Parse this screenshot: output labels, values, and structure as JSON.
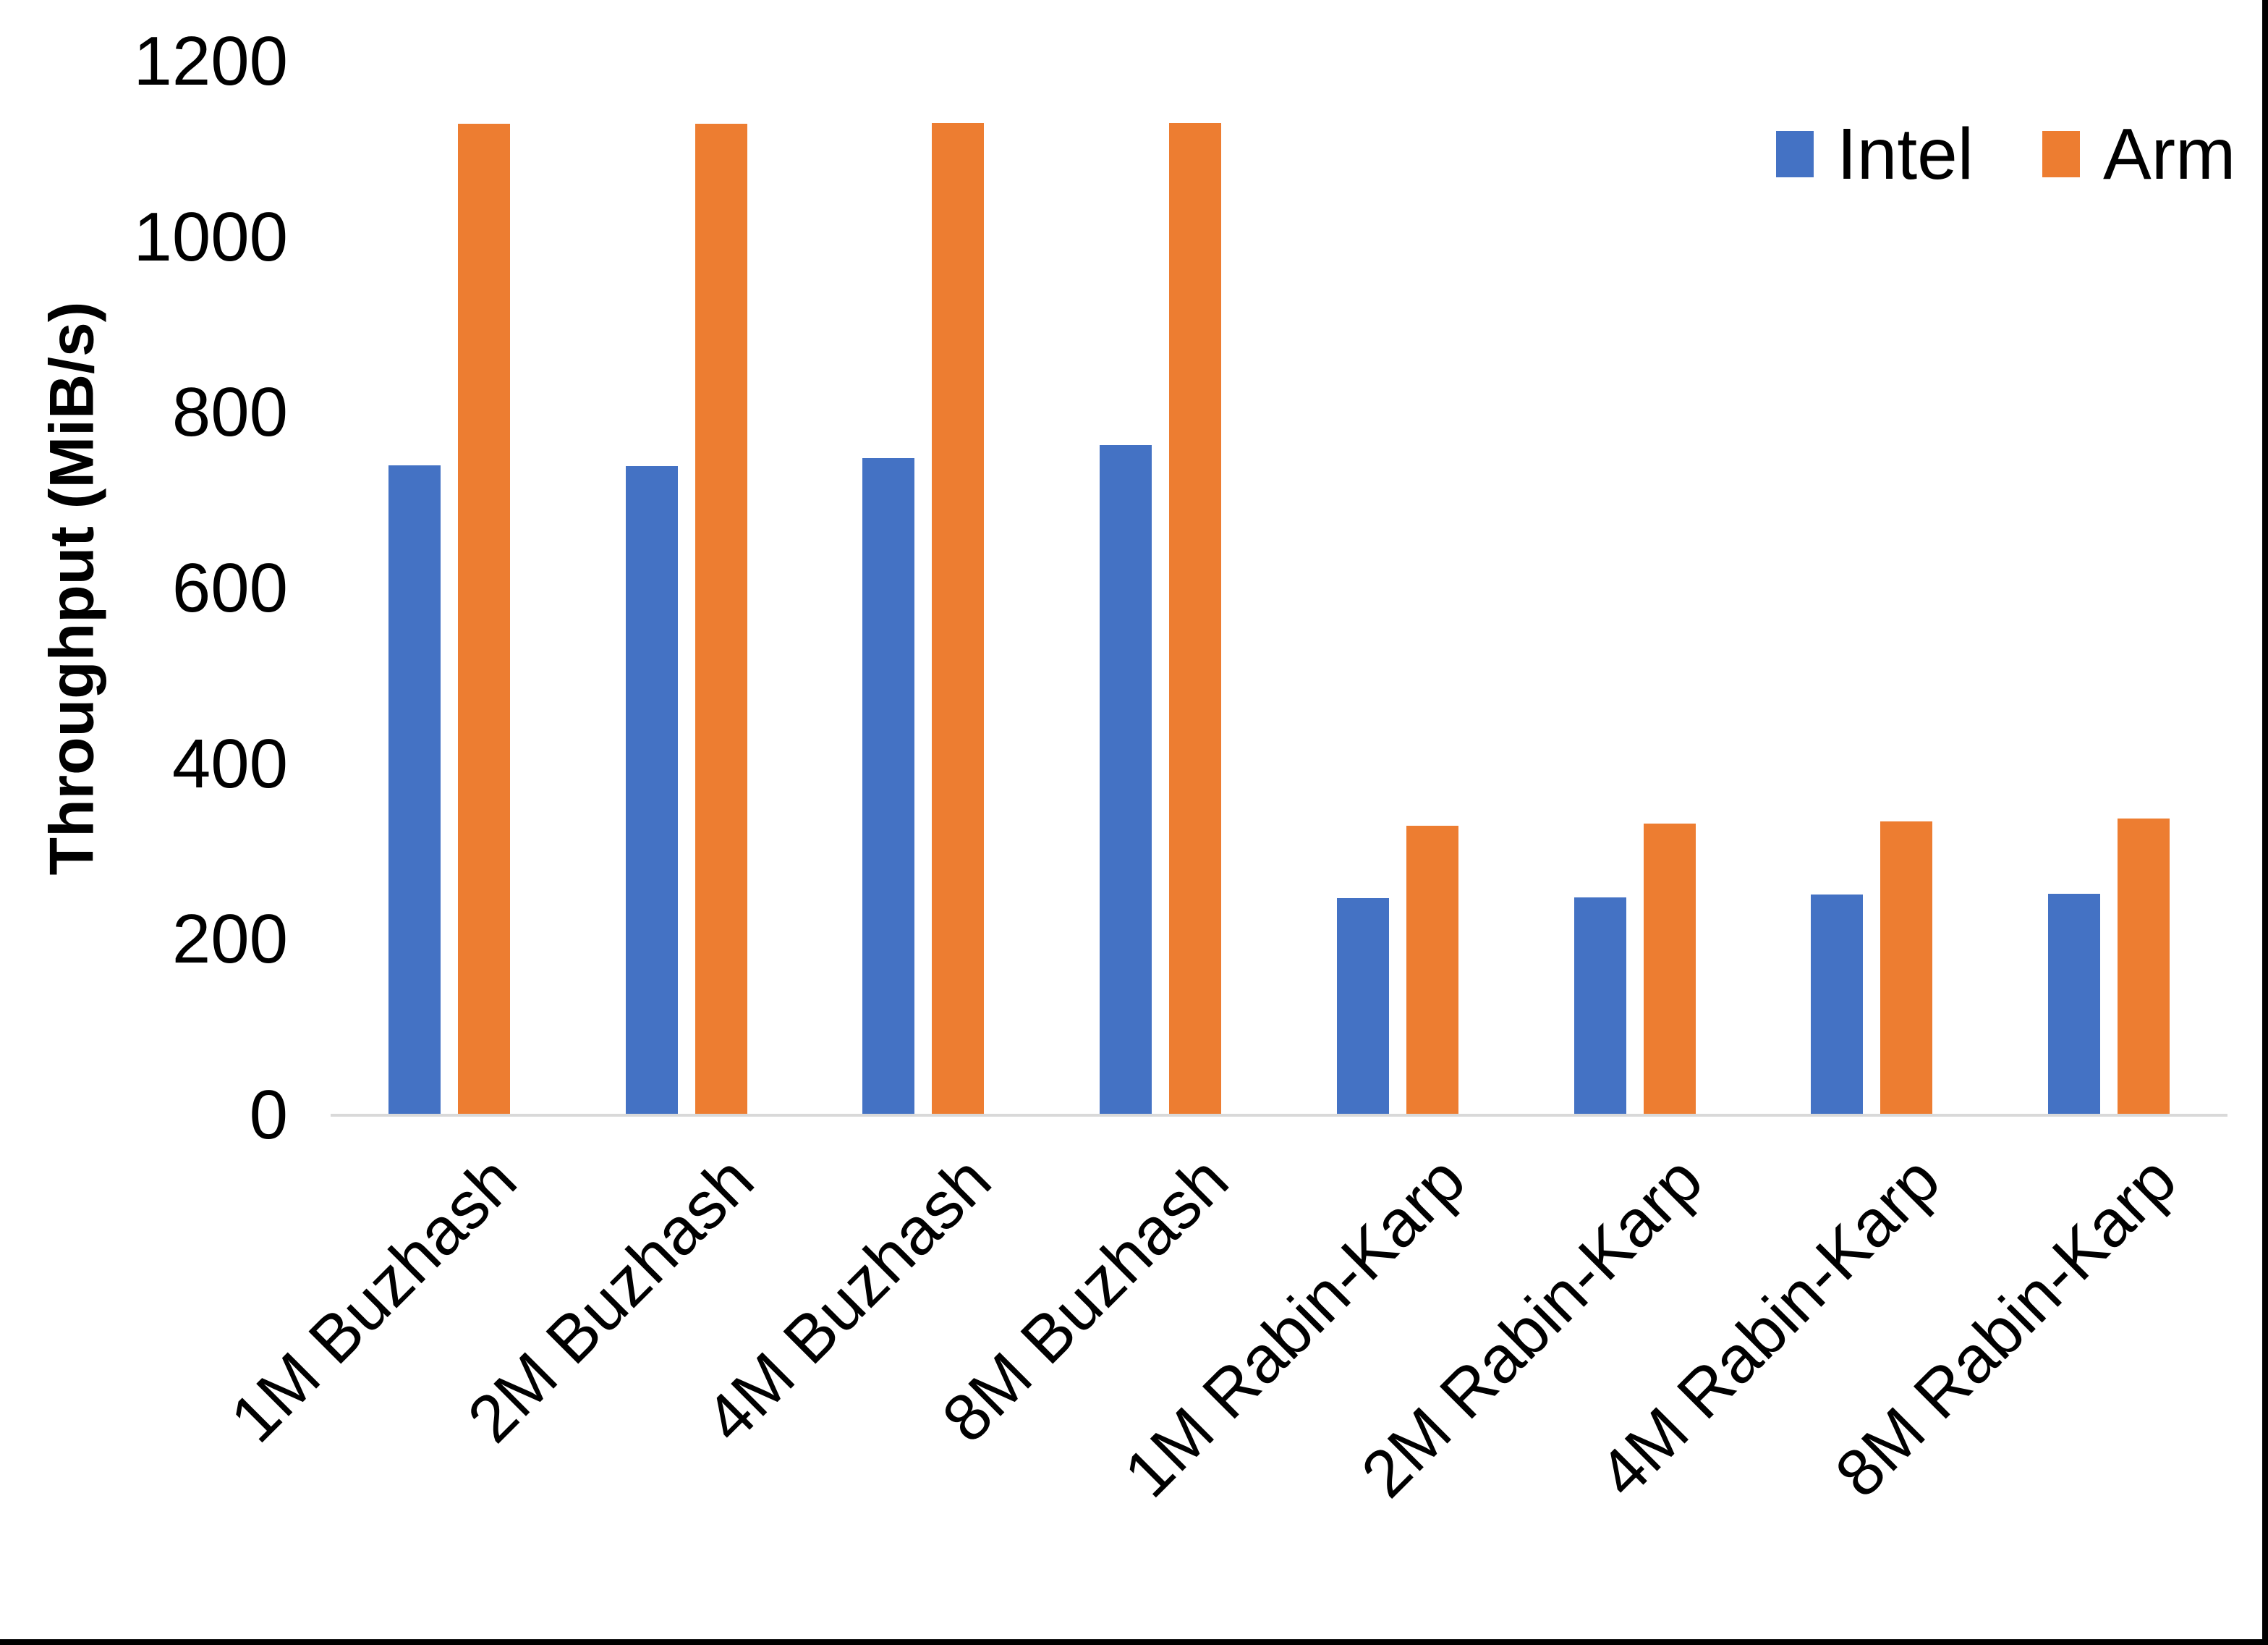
{
  "chart_data": {
    "type": "bar",
    "title": "",
    "xlabel": "",
    "ylabel": "Throughput (MiB/s)",
    "categories": [
      "1M Buzhash",
      "2M Buzhash",
      "4M Buzhash",
      "8M Buzhash",
      "1M Rabin-Karp",
      "2M Rabin-Karp",
      "4M Rabin-Karp",
      "8M Rabin-Karp"
    ],
    "series": [
      {
        "name": "Intel",
        "color": "#4472C4",
        "values": [
          740,
          739,
          748,
          763,
          247,
          248,
          251,
          252
        ]
      },
      {
        "name": "Arm",
        "color": "#ED7D31",
        "values": [
          1129,
          1129,
          1130,
          1130,
          330,
          332,
          335,
          338
        ]
      }
    ],
    "ylim": [
      0,
      1200
    ],
    "yticks": [
      0,
      200,
      400,
      600,
      800,
      1000,
      1200
    ],
    "grid": false,
    "legend_position": "top-right",
    "axis_line_color": "#D9D9D9"
  }
}
